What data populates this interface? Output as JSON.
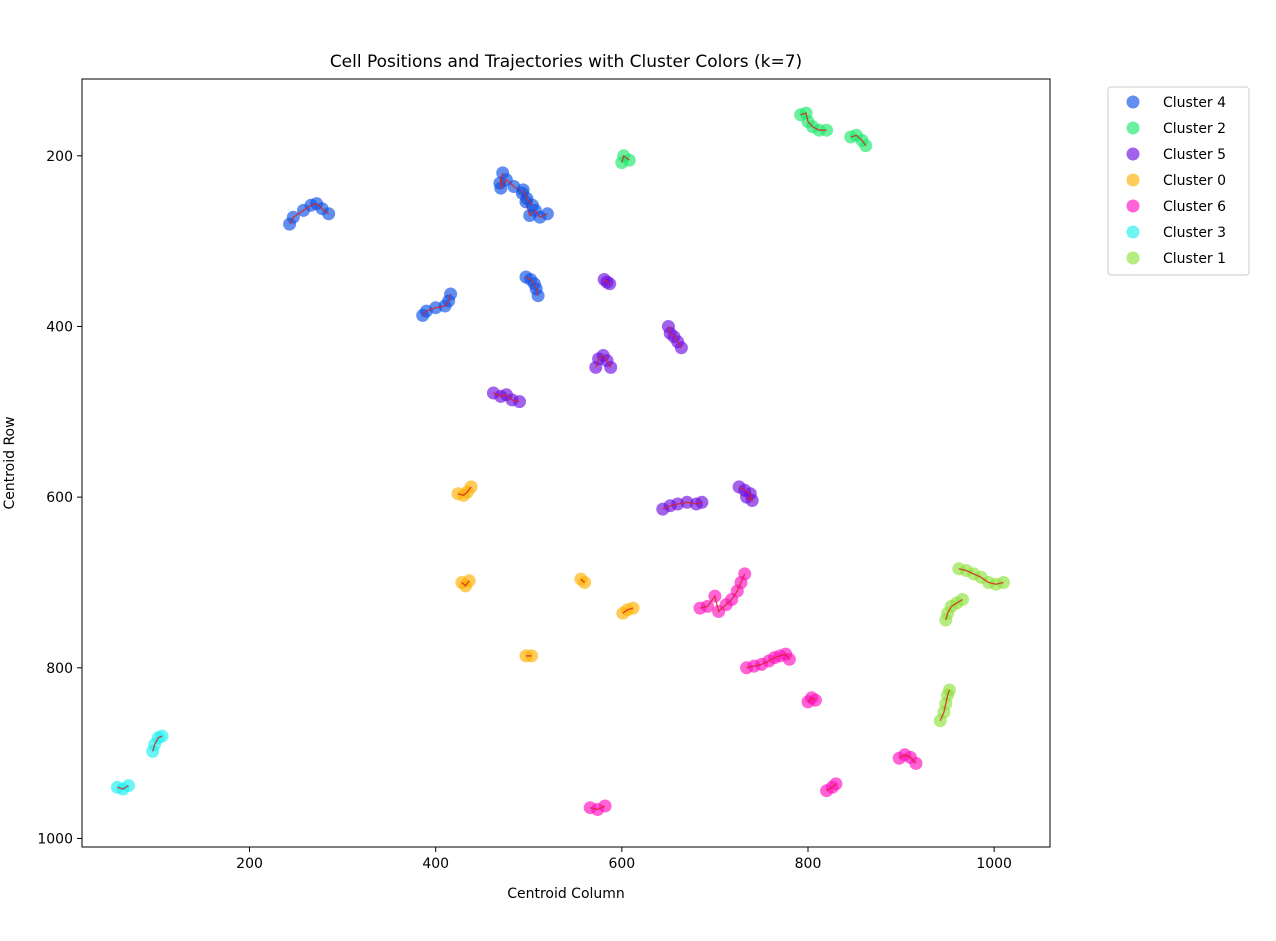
{
  "chart_data": {
    "type": "scatter",
    "title": "Cell Positions and Trajectories with Cluster Colors (k=7)",
    "xlabel": "Centroid Column",
    "ylabel": "Centroid Row",
    "xlim": [
      20,
      1060
    ],
    "ylim": [
      1010,
      110
    ],
    "y_inverted": true,
    "xticks": [
      200,
      400,
      600,
      800,
      1000
    ],
    "yticks": [
      200,
      400,
      600,
      800,
      1000
    ],
    "grid": false,
    "legend_position": "outside-top-right",
    "trajectory_color": "#d62728",
    "series": [
      {
        "name": "Cluster 4",
        "color": "#0d52e6",
        "tracks": [
          [
            [
              243,
              280
            ],
            [
              247,
              272
            ],
            [
              258,
              264
            ],
            [
              266,
              258
            ],
            [
              272,
              256
            ],
            [
              278,
              262
            ],
            [
              285,
              268
            ]
          ],
          [
            [
              469,
              232
            ],
            [
              472,
              220
            ],
            [
              470,
              238
            ],
            [
              476,
              228
            ],
            [
              484,
              236
            ],
            [
              493,
              244
            ],
            [
              497,
              254
            ],
            [
              501,
              270
            ],
            [
              507,
              264
            ],
            [
              512,
              272
            ],
            [
              520,
              268
            ]
          ],
          [
            [
              494,
              240
            ],
            [
              498,
              250
            ],
            [
              504,
              258
            ]
          ],
          [
            [
              386,
              387
            ],
            [
              390,
              382
            ],
            [
              400,
              378
            ],
            [
              410,
              376
            ],
            [
              414,
              370
            ],
            [
              416,
              362
            ]
          ],
          [
            [
              497,
              342
            ],
            [
              502,
              345
            ],
            [
              506,
              350
            ],
            [
              508,
              356
            ],
            [
              510,
              364
            ]
          ]
        ]
      },
      {
        "name": "Cluster 2",
        "color": "#1be86a",
        "tracks": [
          [
            [
              600,
              208
            ],
            [
              602,
              200
            ],
            [
              608,
              205
            ]
          ],
          [
            [
              792,
              152
            ],
            [
              798,
              150
            ],
            [
              800,
              160
            ],
            [
              805,
              166
            ],
            [
              812,
              170
            ],
            [
              820,
              170
            ]
          ],
          [
            [
              846,
              178
            ],
            [
              852,
              176
            ],
            [
              858,
              182
            ],
            [
              862,
              188
            ]
          ]
        ]
      },
      {
        "name": "Cluster 5",
        "color": "#7010e2",
        "tracks": [
          [
            [
              581,
              345
            ],
            [
              584,
              348
            ],
            [
              587,
              350
            ]
          ],
          [
            [
              650,
              400
            ],
            [
              652,
              408
            ],
            [
              656,
              412
            ],
            [
              660,
              418
            ],
            [
              664,
              425
            ]
          ],
          [
            [
              572,
              448
            ],
            [
              575,
              438
            ],
            [
              580,
              434
            ],
            [
              584,
              440
            ],
            [
              588,
              448
            ]
          ],
          [
            [
              462,
              478
            ],
            [
              470,
              482
            ],
            [
              476,
              480
            ],
            [
              482,
              486
            ],
            [
              490,
              488
            ]
          ],
          [
            [
              644,
              614
            ],
            [
              652,
              610
            ],
            [
              660,
              608
            ],
            [
              670,
              606
            ],
            [
              680,
              608
            ],
            [
              686,
              606
            ]
          ],
          [
            [
              726,
              588
            ],
            [
              732,
              592
            ],
            [
              738,
              596
            ],
            [
              740,
              604
            ],
            [
              734,
              600
            ]
          ]
        ]
      },
      {
        "name": "Cluster 0",
        "color": "#ffb000",
        "tracks": [
          [
            [
              424,
              596
            ],
            [
              430,
              598
            ],
            [
              434,
              594
            ],
            [
              438,
              588
            ]
          ],
          [
            [
              428,
              700
            ],
            [
              432,
              704
            ],
            [
              436,
              698
            ]
          ],
          [
            [
              556,
              696
            ],
            [
              560,
              700
            ]
          ],
          [
            [
              497,
              786
            ],
            [
              503,
              786
            ]
          ],
          [
            [
              601,
              736
            ],
            [
              606,
              732
            ],
            [
              612,
              730
            ]
          ]
        ]
      },
      {
        "name": "Cluster 6",
        "color": "#ff10c0",
        "tracks": [
          [
            [
              684,
              730
            ],
            [
              692,
              728
            ],
            [
              700,
              716
            ],
            [
              704,
              734
            ],
            [
              712,
              726
            ],
            [
              718,
              720
            ],
            [
              724,
              710
            ],
            [
              728,
              700
            ],
            [
              732,
              690
            ]
          ],
          [
            [
              734,
              800
            ],
            [
              742,
              798
            ],
            [
              750,
              796
            ],
            [
              758,
              792
            ],
            [
              764,
              788
            ],
            [
              770,
              786
            ],
            [
              776,
              784
            ],
            [
              780,
              790
            ]
          ],
          [
            [
              800,
              840
            ],
            [
              804,
              835
            ],
            [
              808,
              838
            ]
          ],
          [
            [
              898,
              906
            ],
            [
              904,
              902
            ],
            [
              910,
              905
            ],
            [
              916,
              912
            ]
          ],
          [
            [
              820,
              944
            ],
            [
              826,
              940
            ],
            [
              830,
              936
            ]
          ],
          [
            [
              566,
              964
            ],
            [
              574,
              966
            ],
            [
              582,
              962
            ]
          ]
        ]
      },
      {
        "name": "Cluster 3",
        "color": "#1ff0f0",
        "tracks": [
          [
            [
              58,
              940
            ],
            [
              64,
              942
            ],
            [
              70,
              938
            ]
          ],
          [
            [
              96,
              898
            ],
            [
              98,
              890
            ],
            [
              102,
              882
            ],
            [
              106,
              880
            ]
          ]
        ]
      },
      {
        "name": "Cluster 1",
        "color": "#8ee23a",
        "tracks": [
          [
            [
              962,
              684
            ],
            [
              970,
              686
            ],
            [
              978,
              690
            ],
            [
              986,
              694
            ],
            [
              994,
              700
            ],
            [
              1002,
              702
            ],
            [
              1010,
              700
            ]
          ],
          [
            [
              948,
              744
            ],
            [
              950,
              736
            ],
            [
              954,
              728
            ],
            [
              960,
              724
            ],
            [
              966,
              720
            ]
          ],
          [
            [
              942,
              862
            ],
            [
              946,
              852
            ],
            [
              948,
              842
            ],
            [
              950,
              832
            ],
            [
              952,
              826
            ]
          ]
        ]
      }
    ]
  }
}
